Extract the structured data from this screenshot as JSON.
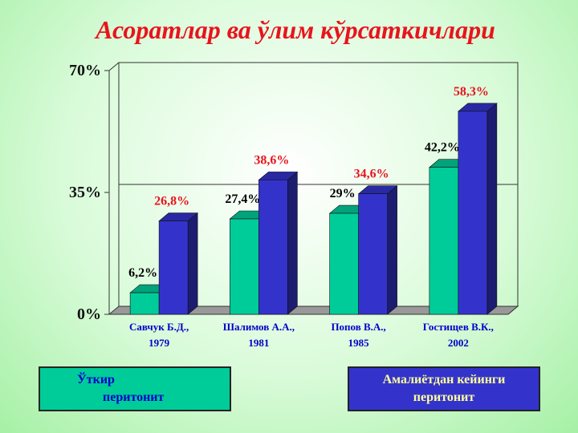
{
  "chart_data": {
    "type": "bar3d",
    "title": "Асоратлар ва ўлим кўрсаткичлари",
    "categories": [
      "Савчук Б.Д.,\n1979",
      "Шалимов А.А.,\n1981",
      "Попов В.А.,\n1985",
      "Гостищев В.К.,\n2002"
    ],
    "series": [
      {
        "name": "Ўткир\n        перитонит",
        "color": "#00cc99",
        "label_color": "#000000",
        "values": [
          6.2,
          27.4,
          29,
          42.2
        ],
        "value_labels": [
          "6,2%",
          "27,4%",
          "29%",
          "42,2%"
        ]
      },
      {
        "name": "Амалиётдан кейинги\nперитонит",
        "color": "#3333cc",
        "label_color": "#e8141c",
        "values": [
          26.8,
          38.6,
          34.6,
          58.3
        ],
        "value_labels": [
          "26,8%",
          "38,6%",
          "34,6%",
          "58,3%"
        ]
      }
    ],
    "ylim": [
      0,
      70
    ],
    "yticks": [
      {
        "value": 0,
        "label": "0%"
      },
      {
        "value": 35,
        "label": "35%"
      },
      {
        "value": 70,
        "label": "70%"
      }
    ],
    "grid": true
  }
}
